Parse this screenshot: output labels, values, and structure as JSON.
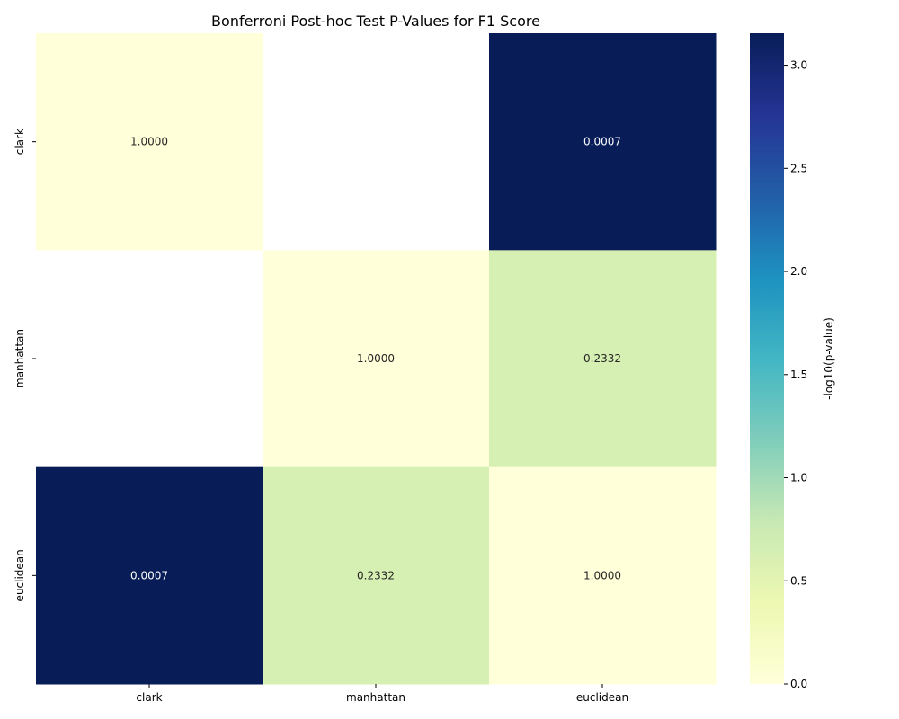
{
  "chart_data": {
    "type": "heatmap",
    "title": "Bonferroni Post-hoc Test P-Values for F1 Score",
    "x_categories": [
      "clark",
      "manhattan",
      "euclidean"
    ],
    "y_categories": [
      "clark",
      "manhattan",
      "euclidean"
    ],
    "values": [
      [
        1.0,
        null,
        0.0007
      ],
      [
        null,
        1.0,
        0.2332
      ],
      [
        0.0007,
        0.2332,
        1.0
      ]
    ],
    "cell_labels": [
      [
        "1.0000",
        "",
        "0.0007"
      ],
      [
        "",
        "1.0000",
        "0.2332"
      ],
      [
        "0.0007",
        "0.2332",
        "1.0000"
      ]
    ],
    "colorbar": {
      "label": "-log10(p-value)",
      "range": [
        0,
        3.155
      ],
      "ticks": [
        "0.0",
        "0.5",
        "1.0",
        "1.5",
        "2.0",
        "2.5",
        "3.0"
      ],
      "colormap": "YlGnBu"
    },
    "missing_color": "#ffffff"
  }
}
